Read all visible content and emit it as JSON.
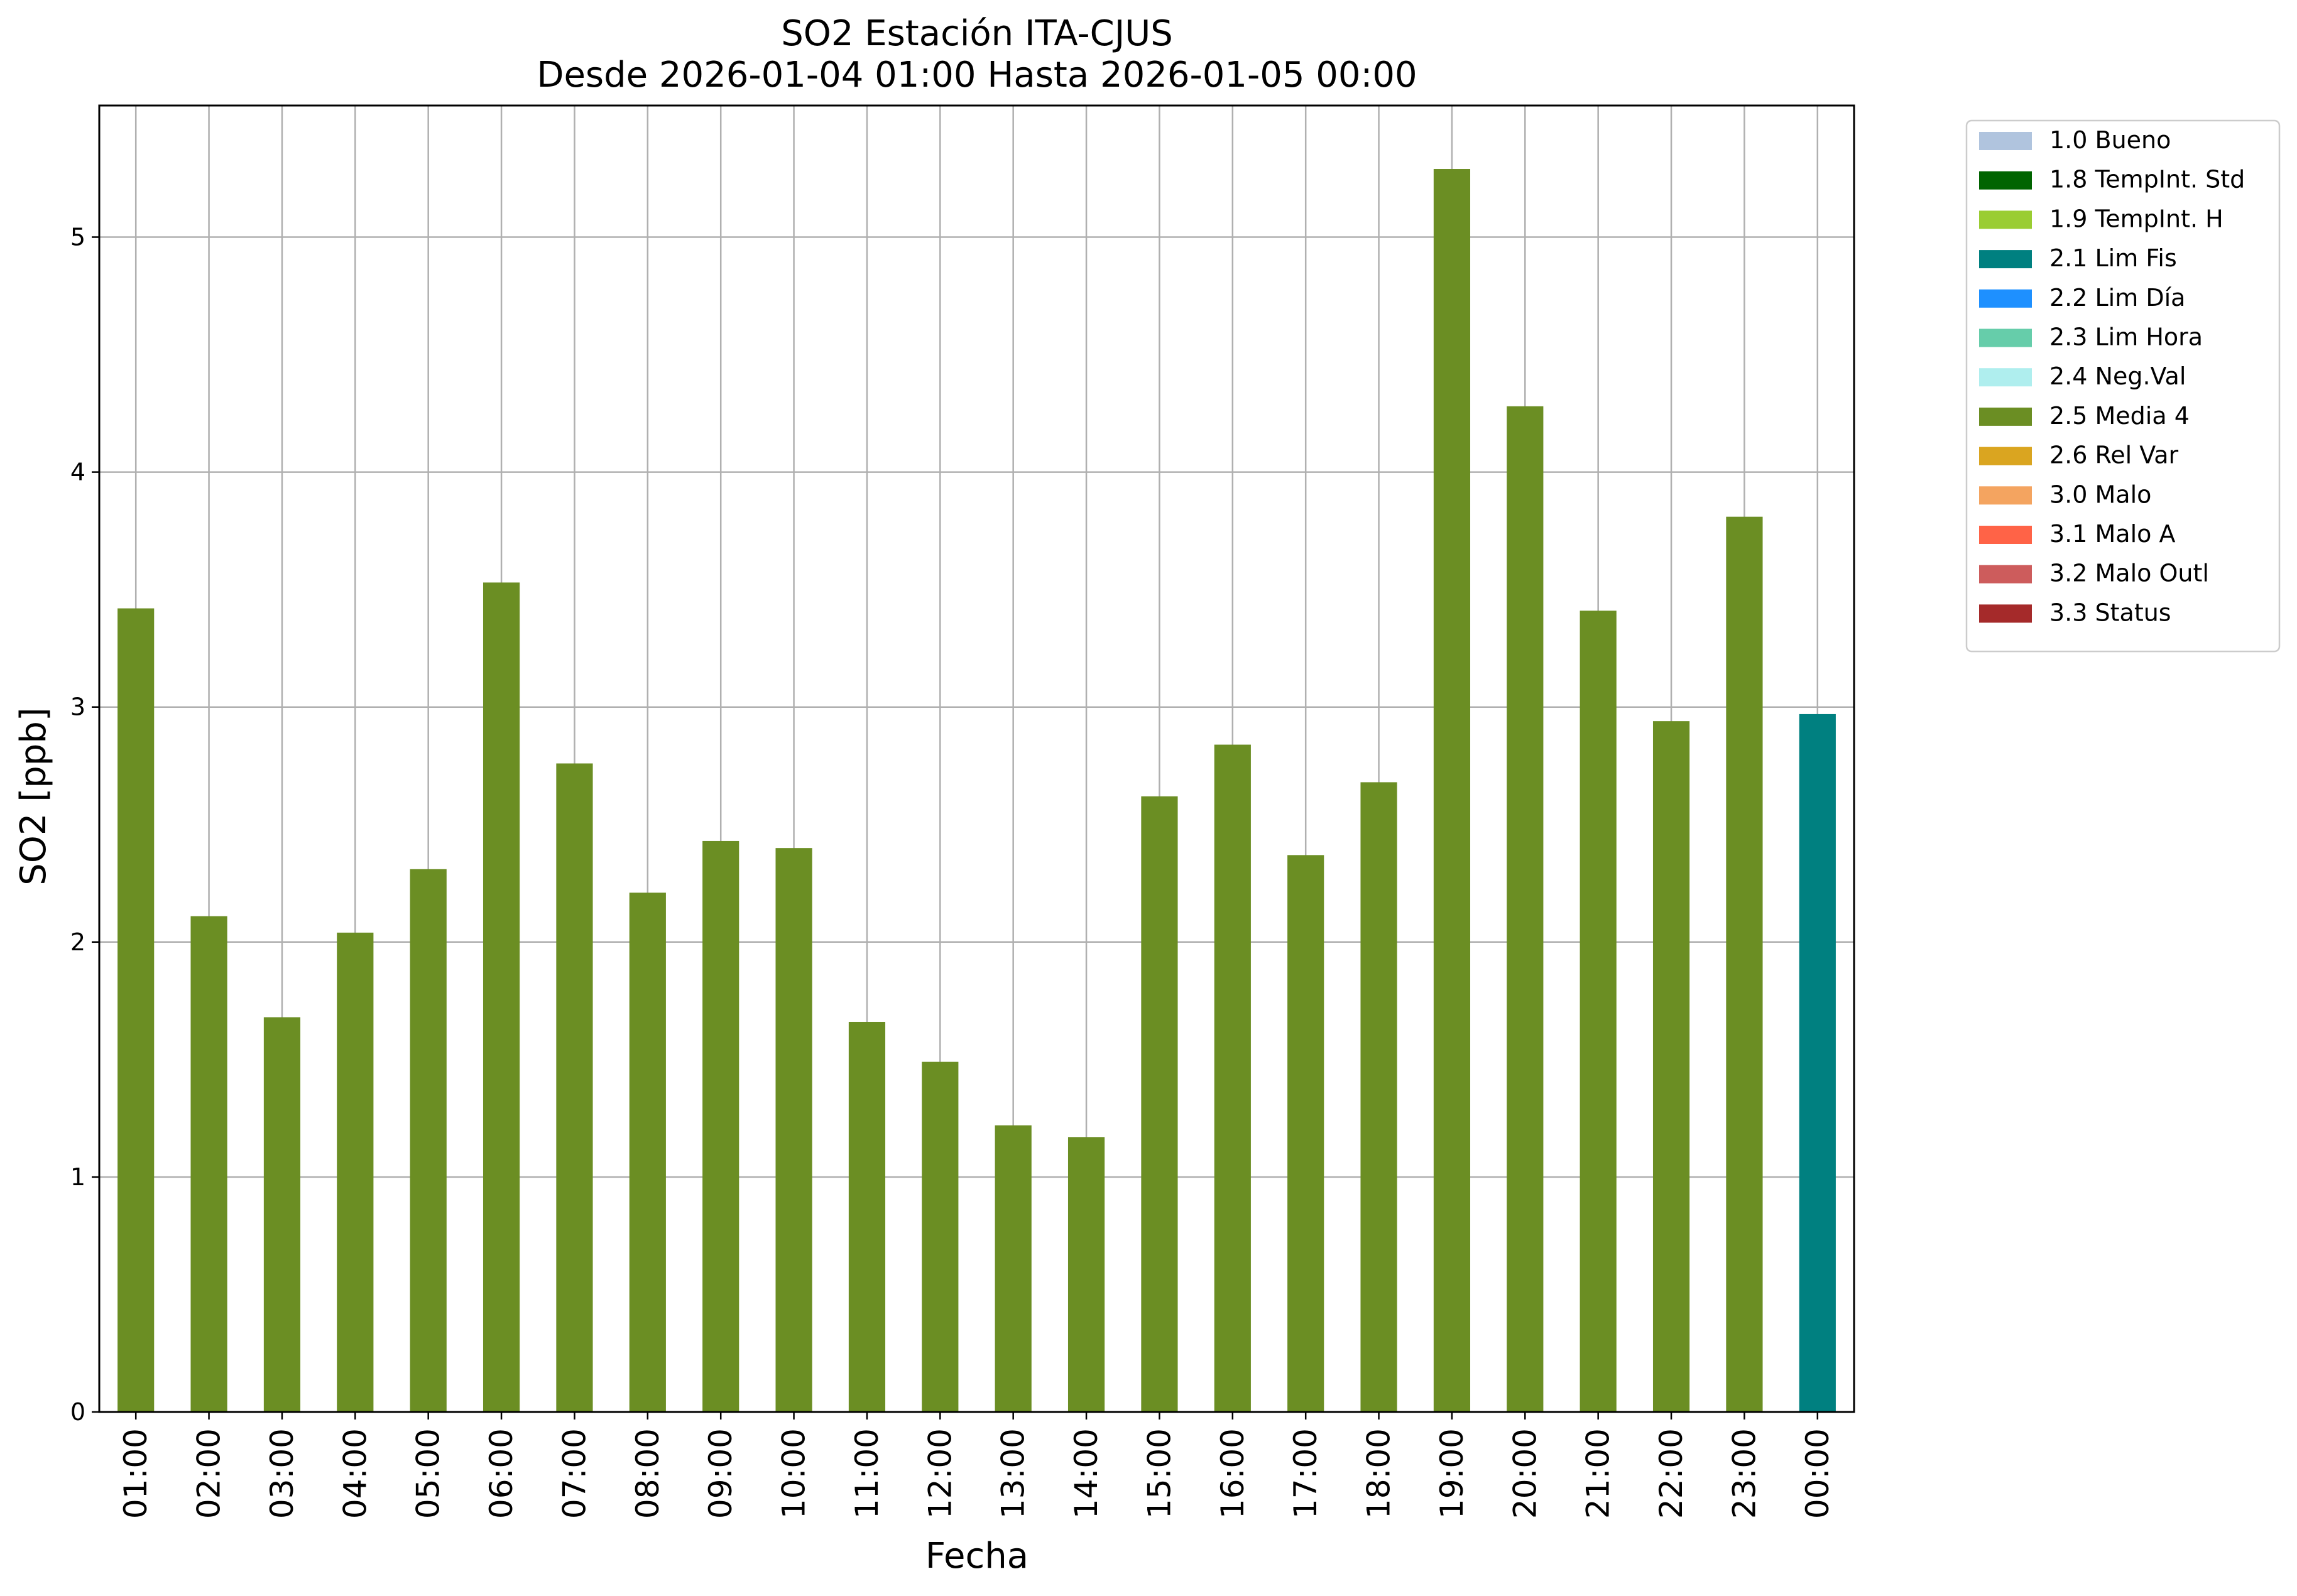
{
  "chart_data": {
    "type": "bar",
    "title": "SO2 Estación ITA-CJUS",
    "subtitle": "Desde 2026-01-04 01:00 Hasta 2026-01-05 00:00",
    "xlabel": "Fecha",
    "ylabel": "SO2 [ppb]",
    "ylim": [
      0,
      5.56
    ],
    "yticks": [
      "0",
      "1",
      "2",
      "3",
      "4",
      "5"
    ],
    "grid": true,
    "legend_placement": "outside-top-right",
    "categories": [
      "01:00",
      "02:00",
      "03:00",
      "04:00",
      "05:00",
      "06:00",
      "07:00",
      "08:00",
      "09:00",
      "10:00",
      "11:00",
      "12:00",
      "13:00",
      "14:00",
      "15:00",
      "16:00",
      "17:00",
      "18:00",
      "19:00",
      "20:00",
      "21:00",
      "22:00",
      "23:00",
      "00:00"
    ],
    "values": [
      3.42,
      2.11,
      1.68,
      2.04,
      2.31,
      3.53,
      2.76,
      2.21,
      2.43,
      2.4,
      1.66,
      1.49,
      1.22,
      1.17,
      2.62,
      2.84,
      2.37,
      2.68,
      5.29,
      4.28,
      3.41,
      2.94,
      3.81,
      2.97
    ],
    "bar_flags": [
      "2.5 Media 4",
      "2.5 Media 4",
      "2.5 Media 4",
      "2.5 Media 4",
      "2.5 Media 4",
      "2.5 Media 4",
      "2.5 Media 4",
      "2.5 Media 4",
      "2.5 Media 4",
      "2.5 Media 4",
      "2.5 Media 4",
      "2.5 Media 4",
      "2.5 Media 4",
      "2.5 Media 4",
      "2.5 Media 4",
      "2.5 Media 4",
      "2.5 Media 4",
      "2.5 Media 4",
      "2.5 Media 4",
      "2.5 Media 4",
      "2.5 Media 4",
      "2.5 Media 4",
      "2.5 Media 4",
      "2.1 Lim Fis"
    ],
    "legend": [
      {
        "label": "1.0 Bueno",
        "color": "#b0c4de"
      },
      {
        "label": "1.8 TempInt. Std",
        "color": "#006400"
      },
      {
        "label": "1.9 TempInt. H",
        "color": "#9acd32"
      },
      {
        "label": "2.1 Lim Fis",
        "color": "#008080"
      },
      {
        "label": "2.2 Lim Día",
        "color": "#1e90ff"
      },
      {
        "label": "2.3 Lim Hora",
        "color": "#66cdaa"
      },
      {
        "label": "2.4 Neg.Val",
        "color": "#afeeee"
      },
      {
        "label": "2.5 Media 4",
        "color": "#6b8e23"
      },
      {
        "label": "2.6 Rel Var",
        "color": "#daa520"
      },
      {
        "label": "3.0 Malo",
        "color": "#f4a460"
      },
      {
        "label": "3.1 Malo A",
        "color": "#ff6347"
      },
      {
        "label": "3.2 Malo Outl",
        "color": "#cd5c5c"
      },
      {
        "label": "3.3 Status",
        "color": "#a52a2a"
      }
    ]
  }
}
